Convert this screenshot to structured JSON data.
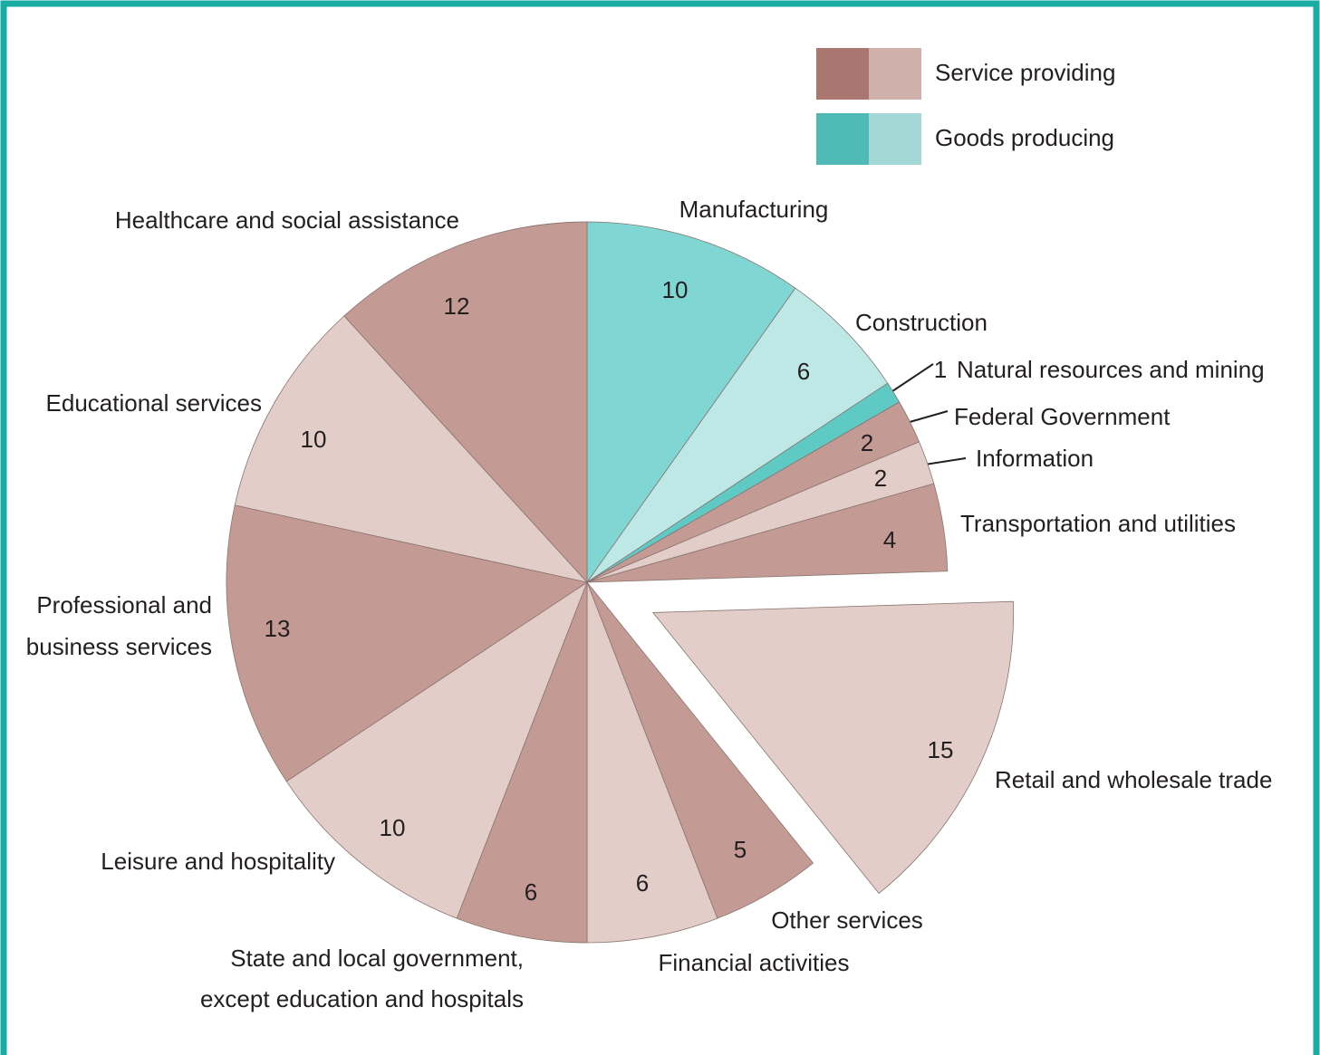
{
  "chart_data": {
    "type": "pie",
    "categories": [
      "Manufacturing",
      "Construction",
      "Natural resources and mining",
      "Federal Government",
      "Information",
      "Transportation and utilities",
      "Retail and wholesale trade",
      "Other services",
      "Financial activities",
      [
        "State and local government,",
        "except education and hospitals"
      ],
      "Leisure and hospitality",
      [
        "Professional and",
        "business services"
      ],
      "Educational services",
      "Healthcare and social assistance"
    ],
    "values": [
      10,
      6,
      1,
      2,
      2,
      4,
      15,
      5,
      6,
      6,
      10,
      13,
      10,
      12
    ],
    "colors": [
      "#7fd6d2",
      "#bde8e6",
      "#5fc9c4",
      "#c49a94",
      "#e2cdc9",
      "#c49a94",
      "#e2cdc9",
      "#c49a94",
      "#e2cdc9",
      "#c49a94",
      "#e2cdc9",
      "#c49a94",
      "#e2cdc9",
      "#c49a94"
    ],
    "exploded": [
      6
    ],
    "legend": [
      {
        "name": "Service providing",
        "colors": [
          "#a9776f",
          "#cfb0ab"
        ]
      },
      {
        "name": "Goods producing",
        "colors": [
          "#4fb9b5",
          "#a3d8d6"
        ]
      }
    ]
  }
}
